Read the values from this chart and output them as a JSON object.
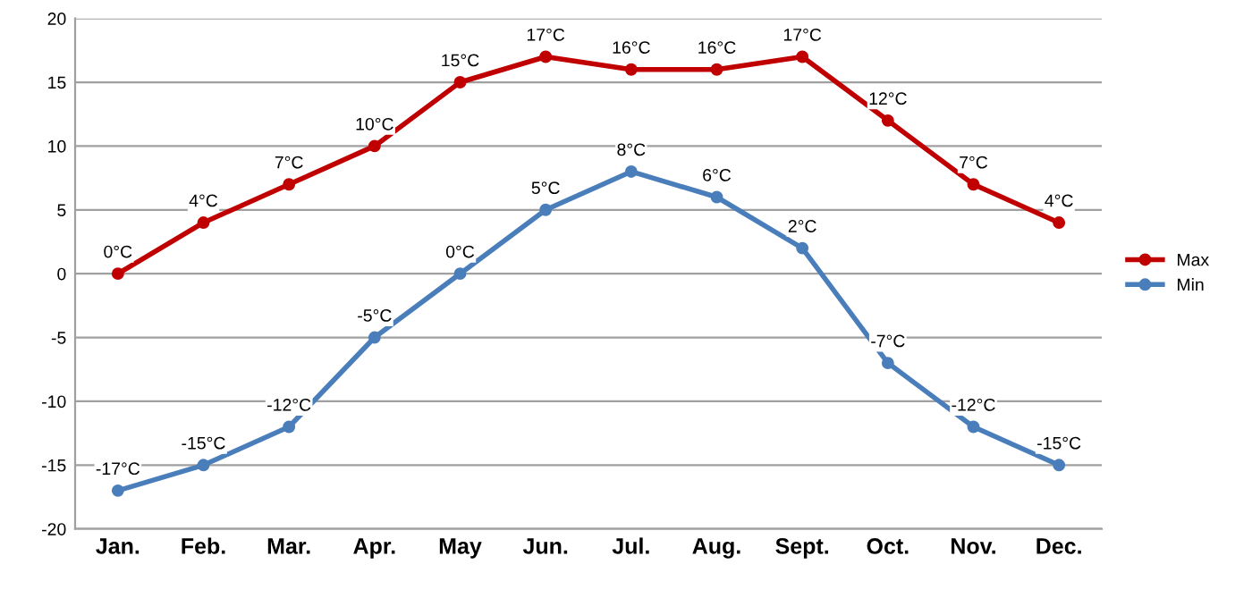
{
  "chart_data": {
    "type": "line",
    "categories": [
      "Jan.",
      "Feb.",
      "Mar.",
      "Apr.",
      "May",
      "Jun.",
      "Jul.",
      "Aug.",
      "Sept.",
      "Oct.",
      "Nov.",
      "Dec."
    ],
    "series": [
      {
        "name": "Max",
        "color": "#c00000",
        "values": [
          0,
          4,
          7,
          10,
          15,
          17,
          16,
          16,
          17,
          12,
          7,
          4
        ],
        "value_labels": [
          "0°C",
          "4°C",
          "7°C",
          "10°C",
          "15°C",
          "17°C",
          "16°C",
          "16°C",
          "17°C",
          "12°C",
          "7°C",
          "4°C"
        ]
      },
      {
        "name": "Min",
        "color": "#4a7ebb",
        "values": [
          -17,
          -15,
          -12,
          -5,
          0,
          5,
          8,
          6,
          2,
          -7,
          -12,
          -15
        ],
        "value_labels": [
          "-17°C",
          "-15°C",
          "-12°C",
          "-5°C",
          "0°C",
          "5°C",
          "8°C",
          "6°C",
          "2°C",
          "-7°C",
          "-12°C",
          "-15°C"
        ]
      }
    ],
    "ylim": [
      -20,
      20
    ],
    "yticks": [
      -20,
      -15,
      -10,
      -5,
      0,
      5,
      10,
      15,
      20
    ],
    "grid": "y",
    "legend": "right",
    "marker": "circle",
    "line_style": "solid"
  }
}
